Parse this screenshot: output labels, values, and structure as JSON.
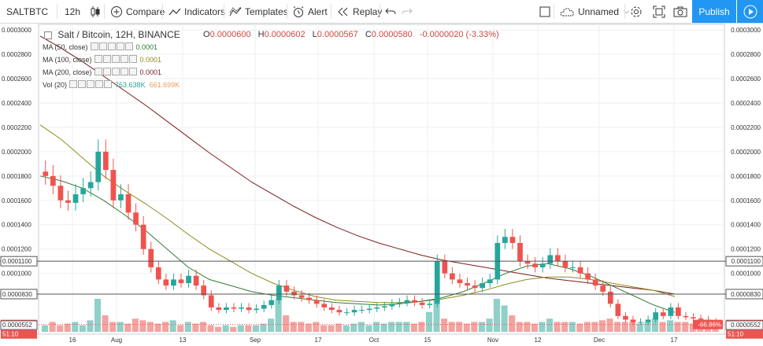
{
  "toolbar": {
    "symbol": "SALTBTC",
    "interval": "12h",
    "compare": "Compare",
    "indicators": "Indicators",
    "templates": "Templates",
    "alert": "Alert",
    "replay": "Replay",
    "layout_name": "Unnamed",
    "publish": "Publish",
    "icons": [
      "candles-icon",
      "plus-circle-icon",
      "indicators-icon",
      "templates-icon",
      "alarm-clock-icon",
      "replay-icon",
      "undo-icon",
      "redo-icon",
      "square-icon",
      "cloud-icon",
      "gear-icon",
      "fullscreen-icon",
      "camera-icon",
      "play-icon"
    ]
  },
  "header": {
    "title": "Salt / Bitcoin, 12H, BINANCE",
    "ohlc": {
      "o_label": "O",
      "o": "0.0000600",
      "h_label": "H",
      "h": "0.0000602",
      "l_label": "L",
      "l": "0.0000567",
      "c_label": "C",
      "c": "0.0000580",
      "change": "-0.0000020 (-3.33%)"
    },
    "indicators": [
      {
        "label": "MA (50, close)",
        "value": "0.0001",
        "color": "#2e7d32"
      },
      {
        "label": "MA (100, close)",
        "value": "0.0001",
        "color": "#8d8d1e"
      },
      {
        "label": "MA (200, close)",
        "value": "0.0001",
        "color": "#7b1d1d"
      },
      {
        "label": "Vol (20)",
        "value": "763.638K",
        "value2": "661.699K",
        "color": "#26a69a",
        "color2": "#ef9a5a"
      }
    ]
  },
  "axis": {
    "y_ticks": [
      "0.0003000",
      "0.0002800",
      "0.0002600",
      "0.0002400",
      "0.0002200",
      "0.0002000",
      "0.0001800",
      "0.0001600",
      "0.0001400",
      "0.0001200",
      "0.0001000"
    ],
    "x_ticks": [
      "16",
      "Aug",
      "13",
      "Sep",
      "17",
      "Oct",
      "15",
      "Nov",
      "12",
      "Dec",
      "17"
    ],
    "left_labels": [
      "0.0003000",
      "0.0002800",
      "0.0002600",
      "0.0002400",
      "0.0002200",
      "0.0002000",
      "0.0001800",
      "0.0001600",
      "0.0001400",
      "0.0001200",
      "0.0001000"
    ],
    "price_lines": [
      {
        "value": "0.0001100",
        "left": "0.0001100"
      },
      {
        "value": "0.0000830",
        "left": "0.0000830"
      }
    ],
    "last_price": {
      "value": "0.0000580",
      "change": "-66.86%"
    },
    "countdown": "51:10",
    "bottom_value": "0.0000552"
  },
  "colors": {
    "up": "#26a69a",
    "down": "#ef5350",
    "accent": "#2196f3",
    "ma50": "#2e7d32",
    "ma100": "#8d8d1e",
    "ma200": "#7b1d1d"
  },
  "chart_data": {
    "type": "candlestick",
    "title": "Salt / Bitcoin, 12H, BINANCE",
    "x_ticks": [
      "16",
      "Aug",
      "13",
      "Sep",
      "17",
      "Oct",
      "15",
      "Nov",
      "12",
      "Dec",
      "17"
    ],
    "ylim": [
      5.52e-05,
      0.000302
    ],
    "close": [
      0.00018,
      0.000172,
      0.00016,
      0.000158,
      0.000165,
      0.00017,
      0.000175,
      0.0002,
      0.000185,
      0.00016,
      0.000165,
      0.00015,
      0.00014,
      0.00012,
      0.000105,
      9.5e-05,
      9e-05,
      9.5e-05,
      9.2e-05,
      9.8e-05,
      9e-05,
      8.2e-05,
      7.2e-05,
      7e-05,
      7.2e-05,
      7.1e-05,
      7.2e-05,
      7e-05,
      7.1e-05,
      7.4e-05,
      7.8e-05,
      9e-05,
      8.5e-05,
      8.2e-05,
      8e-05,
      7.8e-05,
      7.5e-05,
      7.2e-05,
      7e-05,
      6.8e-05,
      6.8e-05,
      7e-05,
      7e-05,
      7.1e-05,
      7.2e-05,
      7.3e-05,
      7.5e-05,
      7.6e-05,
      7.8e-05,
      7.6e-05,
      7.4e-05,
      7.5e-05,
      0.00011,
      0.0001,
      9.5e-05,
      9.2e-05,
      9e-05,
      8.8e-05,
      9.2e-05,
      9.5e-05,
      0.000125,
      0.00013,
      0.000125,
      0.00011,
      0.000108,
      0.000105,
      0.000108,
      0.000115,
      0.00011,
      0.000105,
      0.000105,
      0.0001,
      9.5e-05,
      9e-05,
      8.5e-05,
      7.5e-05,
      6.5e-05,
      6.2e-05,
      6e-05,
      6e-05,
      6.2e-05,
      6.8e-05,
      6.5e-05,
      7.2e-05,
      6.5e-05,
      6.4e-05,
      6.3e-05,
      6.2e-05,
      6e-05,
      5.8e-05
    ],
    "ma50": [
      0.00018,
      0.000176,
      0.00017,
      0.00016,
      0.000148,
      0.000135,
      0.00012,
      0.000105,
      9.5e-05,
      9e-05,
      8.5e-05,
      8.2e-05,
      8e-05,
      7.8e-05,
      7.6e-05,
      7.5e-05,
      7.4e-05,
      7.5e-05,
      7.7e-05,
      8e-05,
      8.5e-05,
      9.2e-05,
      0.0001,
      0.000106,
      0.000108,
      0.000104,
      9.8e-05,
      9e-05,
      8.2e-05,
      7.4e-05,
      6.8e-05
    ],
    "ma100": [
      0.000222,
      0.00021,
      0.000195,
      0.00018,
      0.000168,
      0.000157,
      0.000145,
      0.000132,
      0.00012,
      0.00011,
      0.0001,
      9.2e-05,
      8.6e-05,
      8.1e-05,
      7.8e-05,
      7.7e-05,
      7.6e-05,
      7.6e-05,
      7.7e-05,
      7.9e-05,
      8.2e-05,
      8.6e-05,
      9.1e-05,
      9.5e-05,
      9.7e-05,
      9.7e-05,
      9.5e-05,
      9.2e-05,
      8.9e-05,
      8.6e-05,
      8.1e-05
    ],
    "ma200": [
      0.000295,
      0.000285,
      0.000274,
      0.000262,
      0.00025,
      0.000238,
      0.000225,
      0.000212,
      0.000199,
      0.000187,
      0.000175,
      0.000165,
      0.000155,
      0.000146,
      0.000138,
      0.000131,
      0.000125,
      0.00012,
      0.000115,
      0.000111,
      0.000108,
      0.000105,
      0.000102,
      9.9e-05,
      9.6e-05,
      9.4e-05,
      9.2e-05,
      9e-05,
      8.8e-05,
      8.6e-05,
      8.3e-05
    ],
    "volume": [
      0.2,
      0.3,
      0.2,
      0.25,
      0.3,
      0.2,
      0.35,
      1.0,
      0.5,
      0.3,
      0.3,
      0.25,
      0.4,
      0.35,
      0.3,
      0.25,
      0.3,
      0.35,
      0.2,
      0.3,
      0.25,
      0.3,
      0.2,
      0.15,
      0.2,
      0.15,
      0.2,
      0.2,
      0.2,
      0.25,
      0.4,
      1.0,
      0.5,
      0.3,
      0.3,
      0.25,
      0.3,
      0.2,
      0.2,
      0.25,
      0.2,
      0.25,
      0.3,
      0.2,
      0.3,
      0.25,
      0.3,
      0.3,
      0.3,
      0.25,
      0.3,
      0.6,
      1.0,
      0.4,
      0.3,
      0.3,
      0.25,
      0.3,
      0.3,
      0.4,
      1.0,
      0.8,
      0.5,
      0.3,
      0.3,
      0.25,
      0.3,
      0.4,
      0.3,
      0.3,
      0.3,
      0.25,
      0.3,
      0.3,
      0.35,
      0.4,
      0.3,
      0.3,
      0.3,
      0.25,
      0.3,
      0.4,
      0.3,
      0.35,
      0.3,
      0.3,
      0.25,
      0.3,
      0.3,
      0.3
    ]
  }
}
